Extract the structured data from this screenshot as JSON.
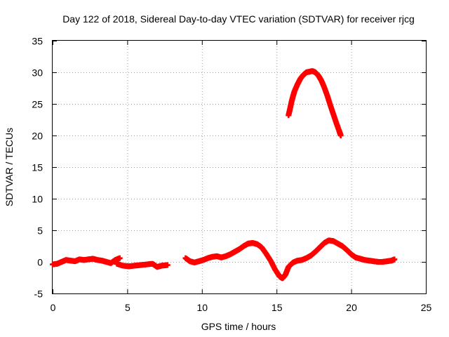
{
  "chart_data": {
    "type": "scatter",
    "title": "Day 122 of 2018, Sidereal Day-to-day VTEC variation (SDTVAR) for receiver rjcg",
    "xlabel": "GPS time / hours",
    "ylabel": "SDTVAR / TECUs",
    "xlim": [
      0,
      25
    ],
    "ylim": [
      -5,
      35
    ],
    "xticks": [
      0,
      5,
      10,
      15,
      20,
      25
    ],
    "yticks": [
      -5,
      0,
      5,
      10,
      15,
      20,
      25,
      30,
      35
    ],
    "grid": true,
    "marker": "+",
    "color": "#ff0000",
    "series": [
      {
        "name": "segment-1",
        "x": [
          0.0,
          0.3,
          0.6,
          0.9,
          1.2,
          1.5,
          1.8,
          2.1,
          2.4,
          2.7,
          3.0,
          3.3,
          3.6,
          3.9,
          4.2,
          4.5
        ],
        "y": [
          -0.4,
          -0.3,
          0.0,
          0.3,
          0.2,
          0.1,
          0.4,
          0.3,
          0.4,
          0.5,
          0.3,
          0.2,
          0.0,
          -0.2,
          0.3,
          0.6
        ]
      },
      {
        "name": "segment-2",
        "x": [
          4.3,
          4.7,
          5.1,
          5.5,
          5.9,
          6.3,
          6.7,
          7.0,
          7.3,
          7.7
        ],
        "y": [
          -0.3,
          -0.6,
          -0.7,
          -0.6,
          -0.5,
          -0.4,
          -0.3,
          -0.8,
          -0.6,
          -0.5
        ]
      },
      {
        "name": "segment-3",
        "x": [
          8.9,
          9.2,
          9.5,
          9.8,
          10.1,
          10.4,
          10.7,
          11.0,
          11.3,
          11.6,
          11.9,
          12.2,
          12.5,
          12.8,
          13.1,
          13.4,
          13.7,
          14.0,
          14.3,
          14.6,
          14.9,
          15.2,
          15.4,
          15.6,
          15.8,
          16.1,
          16.4,
          16.7,
          17.0,
          17.3,
          17.6,
          17.9,
          18.2,
          18.5,
          18.8,
          19.1,
          19.4,
          19.7,
          20.0,
          20.3,
          20.6,
          20.9,
          21.2,
          21.5,
          21.8,
          22.1,
          22.4,
          22.7,
          22.9
        ],
        "y": [
          0.6,
          0.1,
          -0.1,
          0.1,
          0.3,
          0.6,
          0.8,
          0.9,
          0.7,
          0.9,
          1.2,
          1.6,
          2.0,
          2.5,
          2.9,
          3.0,
          2.8,
          2.3,
          1.3,
          0.2,
          -1.2,
          -2.3,
          -2.6,
          -2.0,
          -0.8,
          -0.1,
          0.2,
          0.3,
          0.6,
          1.0,
          1.6,
          2.3,
          3.0,
          3.4,
          3.3,
          2.9,
          2.5,
          1.9,
          1.2,
          0.7,
          0.5,
          0.3,
          0.2,
          0.1,
          0.0,
          0.0,
          0.1,
          0.2,
          0.4
        ]
      },
      {
        "name": "segment-4",
        "x": [
          15.8,
          15.9,
          16.0,
          16.1,
          16.2,
          16.4,
          16.6,
          16.8,
          17.0,
          17.2,
          17.4,
          17.6,
          17.8,
          18.0,
          18.2,
          18.4,
          18.6,
          18.8,
          19.0,
          19.2,
          19.3
        ],
        "y": [
          23.2,
          24.2,
          25.3,
          26.2,
          27.0,
          28.1,
          29.0,
          29.6,
          30.0,
          30.1,
          30.2,
          30.0,
          29.5,
          28.7,
          27.6,
          26.3,
          24.8,
          23.4,
          22.0,
          20.7,
          20.0
        ]
      }
    ]
  }
}
